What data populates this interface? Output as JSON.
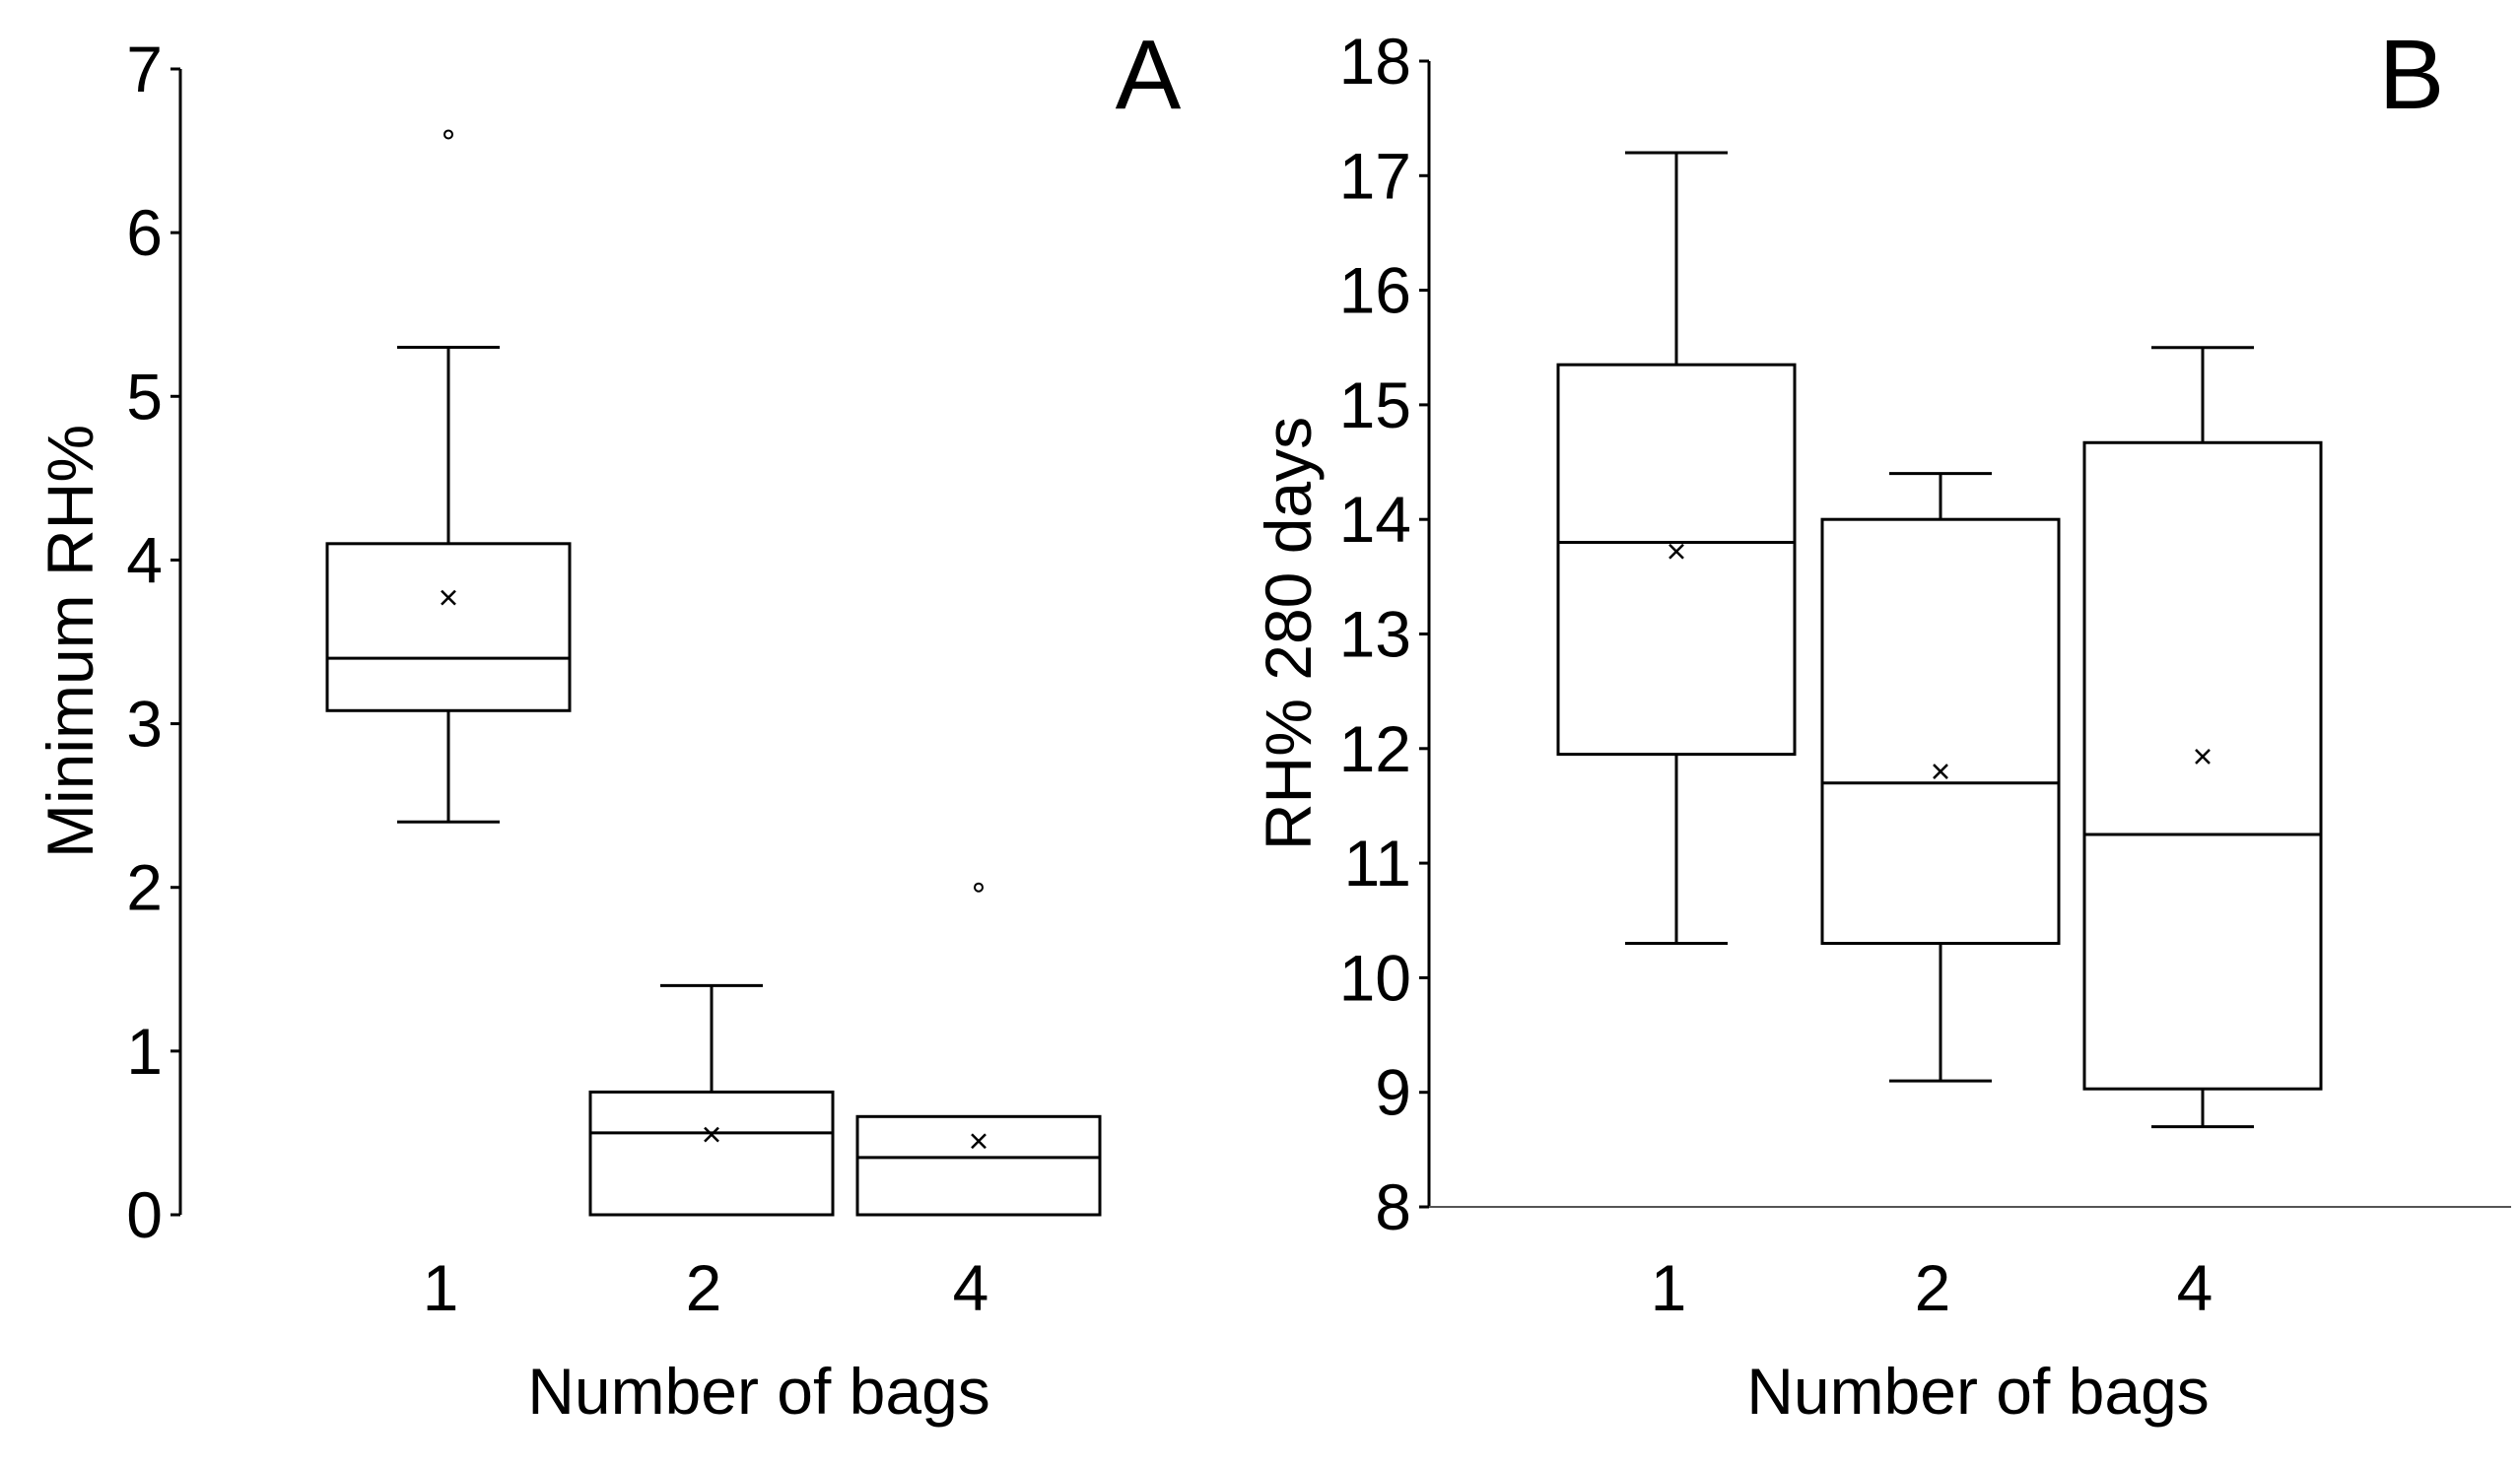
{
  "chart_data": [
    {
      "type": "box",
      "panel_label": "A",
      "xlabel": "Number of bags",
      "ylabel": "Minimum RH%",
      "ylim": [
        0,
        7
      ],
      "yticks": [
        "0",
        "1",
        "2",
        "3",
        "4",
        "5",
        "6",
        "7"
      ],
      "categories": [
        "1",
        "2",
        "4"
      ],
      "boxes": [
        {
          "category": "1",
          "whisker_low": 2.4,
          "q1": 3.08,
          "median": 3.4,
          "q3": 4.1,
          "whisker_high": 5.3,
          "mean": 3.77,
          "outliers": [
            6.6
          ]
        },
        {
          "category": "2",
          "whisker_low": 0.0,
          "q1": 0.0,
          "median": 0.5,
          "q3": 0.75,
          "whisker_high": 1.4,
          "mean": 0.49,
          "outliers": []
        },
        {
          "category": "4",
          "whisker_low": 0.0,
          "q1": 0.0,
          "median": 0.35,
          "q3": 0.6,
          "whisker_high": 0.6,
          "mean": 0.45,
          "outliers": [
            2.0
          ]
        }
      ]
    },
    {
      "type": "box",
      "panel_label": "B",
      "xlabel": "Number of bags",
      "ylabel": "RH% 280 days",
      "ylim": [
        8,
        18
      ],
      "yticks": [
        "8",
        "9",
        "10",
        "11",
        "12",
        "13",
        "14",
        "15",
        "16",
        "17",
        "18"
      ],
      "categories": [
        "1",
        "2",
        "4"
      ],
      "boxes": [
        {
          "category": "1",
          "whisker_low": 10.3,
          "q1": 11.95,
          "median": 13.8,
          "q3": 15.35,
          "whisker_high": 17.2,
          "mean": 13.72,
          "outliers": []
        },
        {
          "category": "2",
          "whisker_low": 9.1,
          "q1": 10.3,
          "median": 11.7,
          "q3": 14.0,
          "whisker_high": 14.4,
          "mean": 11.8,
          "outliers": []
        },
        {
          "category": "4",
          "whisker_low": 8.7,
          "q1": 9.03,
          "median": 11.25,
          "q3": 14.67,
          "whisker_high": 15.5,
          "mean": 11.93,
          "outliers": []
        }
      ]
    }
  ]
}
